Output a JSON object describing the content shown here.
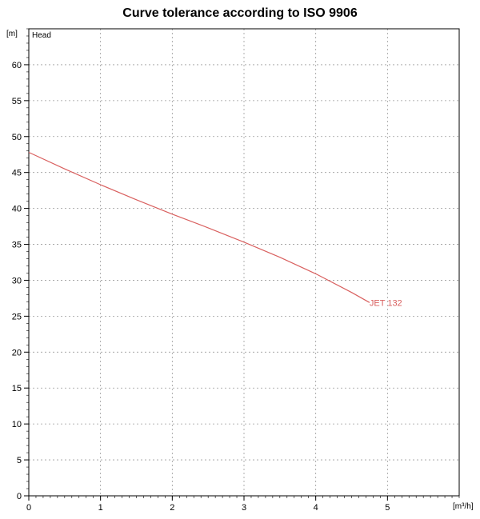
{
  "chart_data": {
    "type": "line",
    "title": "Curve tolerance according to ISO 9906",
    "y_unit": "[m]",
    "y_name": "Head",
    "x_unit": "[m³/h]",
    "xlim": [
      0,
      6
    ],
    "ylim": [
      0,
      65
    ],
    "x_ticks": [
      "0",
      "1",
      "2",
      "3",
      "4",
      "5"
    ],
    "y_ticks": [
      "0",
      "5",
      "10",
      "15",
      "20",
      "25",
      "30",
      "35",
      "40",
      "45",
      "50",
      "55",
      "60"
    ],
    "grid": true,
    "series_color": "#d9605f",
    "series": [
      {
        "name": "JET 132",
        "x": [
          0,
          0.5,
          1.0,
          1.5,
          2.0,
          2.5,
          3.0,
          3.5,
          4.0,
          4.5,
          4.75
        ],
        "y": [
          47.8,
          45.5,
          43.3,
          41.2,
          39.2,
          37.3,
          35.3,
          33.2,
          30.9,
          28.3,
          26.9
        ]
      }
    ]
  }
}
